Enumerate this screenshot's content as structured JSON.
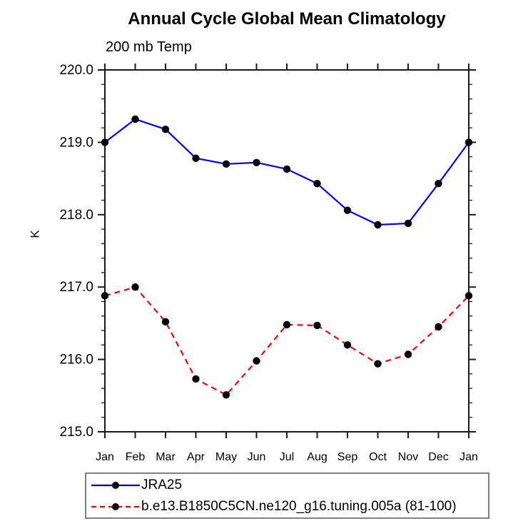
{
  "chart_data": {
    "type": "line",
    "title": "Annual Cycle Global Mean Climatology",
    "subtitle": "200 mb Temp",
    "ylabel": "K",
    "categories": [
      "Jan",
      "Feb",
      "Mar",
      "Apr",
      "May",
      "Jun",
      "Jul",
      "Aug",
      "Sep",
      "Oct",
      "Nov",
      "Dec",
      "Jan"
    ],
    "ylim": [
      215.0,
      220.0
    ],
    "y_major_step": 1.0,
    "y_minor_step": 0.2,
    "y_tick_labels": [
      "215.0",
      "216.0",
      "217.0",
      "218.0",
      "219.0",
      "220.0"
    ],
    "grid": false,
    "legend_position": "bottom-left",
    "axis_color": "#1a1a1a",
    "text_color": "#000000",
    "legend_border_color": "#7f7f7f",
    "marker": "filled-circle",
    "marker_color": "#000000",
    "series": [
      {
        "name": "JRA25",
        "color": "#0000ff",
        "line_style": "solid",
        "values": [
          219.0,
          219.32,
          219.18,
          218.78,
          218.7,
          218.72,
          218.63,
          218.43,
          218.06,
          217.86,
          217.88,
          218.43,
          219.0
        ]
      },
      {
        "name": "b.e13.B1850C5CN.ne120_g16.tuning.005a (81-100)",
        "color": "#ff0000",
        "line_style": "dashed",
        "values": [
          216.88,
          217.0,
          216.52,
          215.73,
          215.51,
          215.98,
          216.48,
          216.47,
          216.2,
          215.94,
          216.07,
          216.45,
          216.88
        ]
      }
    ]
  }
}
